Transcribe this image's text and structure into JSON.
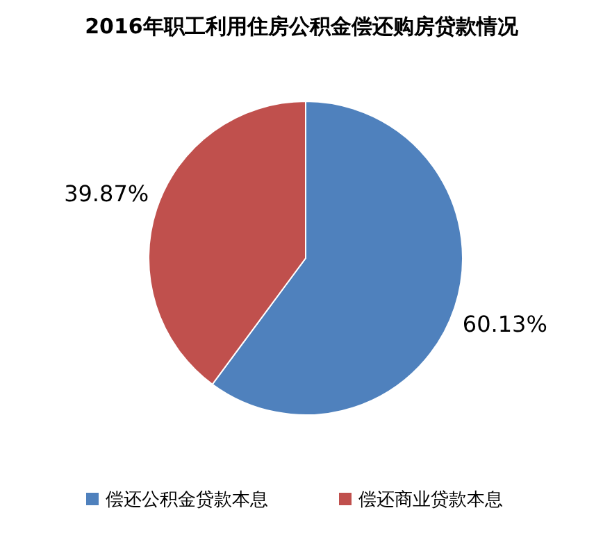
{
  "chart_data": {
    "type": "pie",
    "title": "2016年职工利用住房公积金偿还购房贷款情况",
    "categories": [
      "偿还公积金贷款本息",
      "偿还商业贷款本息"
    ],
    "values": [
      60.13,
      39.87
    ],
    "colors": [
      "#4f81bd",
      "#c0504d"
    ],
    "value_labels": [
      "60.13%",
      "39.87%"
    ],
    "legend": "bottom"
  }
}
